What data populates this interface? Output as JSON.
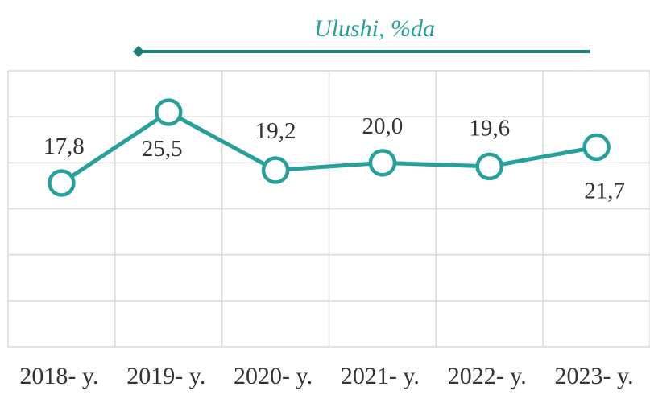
{
  "chart_data": {
    "type": "line",
    "categories": [
      "2018- y.",
      "2019- y.",
      "2020- y.",
      "2021- y.",
      "2022- y.",
      "2023- y."
    ],
    "series": [
      {
        "name": "Ulushi, %da",
        "color": "#26a09a",
        "values": [
          17.8,
          25.5,
          19.2,
          20.0,
          19.6,
          21.7
        ],
        "value_labels": [
          "17,8",
          "25,5",
          "19,2",
          "20,0",
          "19,6",
          "21,7"
        ]
      }
    ],
    "ylim": [
      0,
      30
    ],
    "yticks": [
      0,
      5,
      10,
      15,
      20,
      25,
      30
    ],
    "grid": true,
    "legend": "top"
  }
}
